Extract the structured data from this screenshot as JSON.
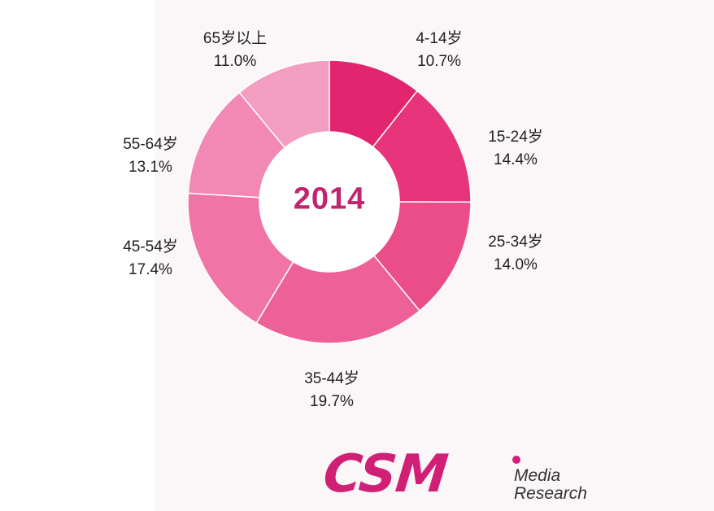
{
  "chart_data": {
    "type": "pie",
    "title": "2014",
    "categories": [
      "4-14岁",
      "15-24岁",
      "25-34岁",
      "35-44岁",
      "45-54岁",
      "55-64岁",
      "65岁以上"
    ],
    "values": [
      10.7,
      14.4,
      14.0,
      19.7,
      17.4,
      13.1,
      11.0
    ],
    "value_labels": [
      "10.7%",
      "14.4%",
      "14.0%",
      "19.7%",
      "17.4%",
      "13.1%",
      "11.0%"
    ],
    "colors": [
      "#e3256f",
      "#e8347a",
      "#ea4d87",
      "#ee6198",
      "#f075a6",
      "#f289b4",
      "#f39ec1"
    ],
    "hole": true
  },
  "logo": {
    "mark": "CSM",
    "line1": "Media",
    "line2": "Research"
  }
}
